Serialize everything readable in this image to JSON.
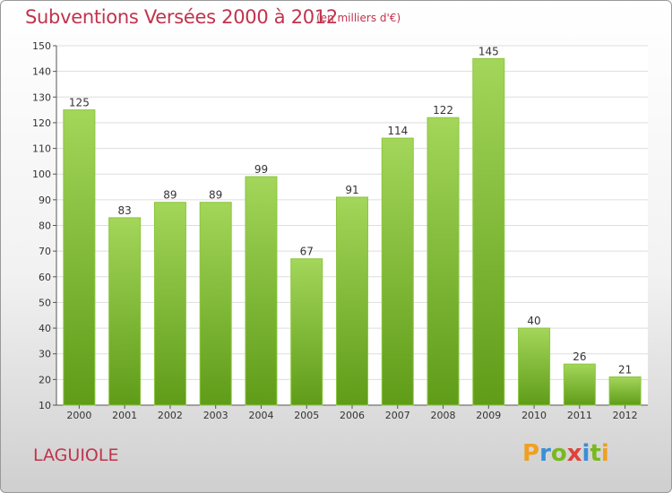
{
  "header": {
    "title": "Subventions Versées 2000 à 2012",
    "subtitle": "(en milliers d'€)"
  },
  "footer": {
    "commune": "LAGUIOLE",
    "logo_text": "Proxiti"
  },
  "colors": {
    "title": "#c0334d",
    "bar_light": "#a3d65a",
    "bar_dark": "#5f9c18",
    "grid": "#dddddd"
  },
  "chart_data": {
    "type": "bar",
    "title": "Subventions Versées 2000 à 2012",
    "subtitle": "(en milliers d'€)",
    "xlabel": "",
    "ylabel": "",
    "categories": [
      "2000",
      "2001",
      "2002",
      "2003",
      "2004",
      "2005",
      "2006",
      "2007",
      "2008",
      "2009",
      "2010",
      "2011",
      "2012"
    ],
    "values": [
      125,
      83,
      89,
      89,
      99,
      67,
      91,
      114,
      122,
      145,
      40,
      26,
      21
    ],
    "ylim": [
      10,
      150
    ],
    "yticks": [
      10,
      20,
      30,
      40,
      50,
      60,
      70,
      80,
      90,
      100,
      110,
      120,
      130,
      140,
      150
    ],
    "grid": true,
    "legend": "none"
  }
}
